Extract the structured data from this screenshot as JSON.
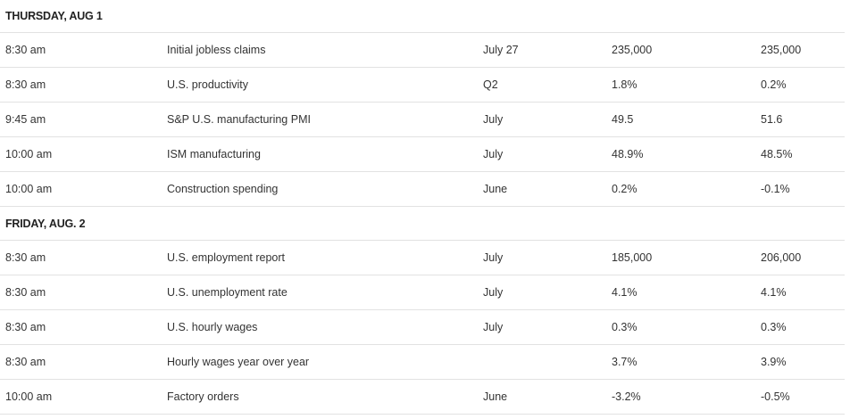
{
  "sections": [
    {
      "header": "THURSDAY, AUG 1",
      "rows": [
        {
          "time": "8:30 am",
          "report": "Initial jobless claims",
          "period": "July 27",
          "actual": "235,000",
          "previous": "235,000"
        },
        {
          "time": "8:30 am",
          "report": "U.S. productivity",
          "period": "Q2",
          "actual": "1.8%",
          "previous": "0.2%"
        },
        {
          "time": "9:45 am",
          "report": "S&P U.S. manufacturing PMI",
          "period": "July",
          "actual": "49.5",
          "previous": "51.6"
        },
        {
          "time": "10:00 am",
          "report": "ISM manufacturing",
          "period": "July",
          "actual": "48.9%",
          "previous": "48.5%"
        },
        {
          "time": "10:00 am",
          "report": "Construction spending",
          "period": "June",
          "actual": "0.2%",
          "previous": "-0.1%"
        }
      ]
    },
    {
      "header": "FRIDAY, AUG. 2",
      "rows": [
        {
          "time": "8:30 am",
          "report": "U.S. employment report",
          "period": "July",
          "actual": "185,000",
          "previous": "206,000"
        },
        {
          "time": "8:30 am",
          "report": "U.S. unemployment rate",
          "period": "July",
          "actual": "4.1%",
          "previous": "4.1%"
        },
        {
          "time": "8:30 am",
          "report": "U.S. hourly wages",
          "period": "July",
          "actual": "0.3%",
          "previous": "0.3%"
        },
        {
          "time": "8:30 am",
          "report": "Hourly wages year over year",
          "period": "",
          "actual": "3.7%",
          "previous": "3.9%"
        },
        {
          "time": "10:00 am",
          "report": "Factory orders",
          "period": "June",
          "actual": "-3.2%",
          "previous": "-0.5%"
        }
      ]
    }
  ]
}
